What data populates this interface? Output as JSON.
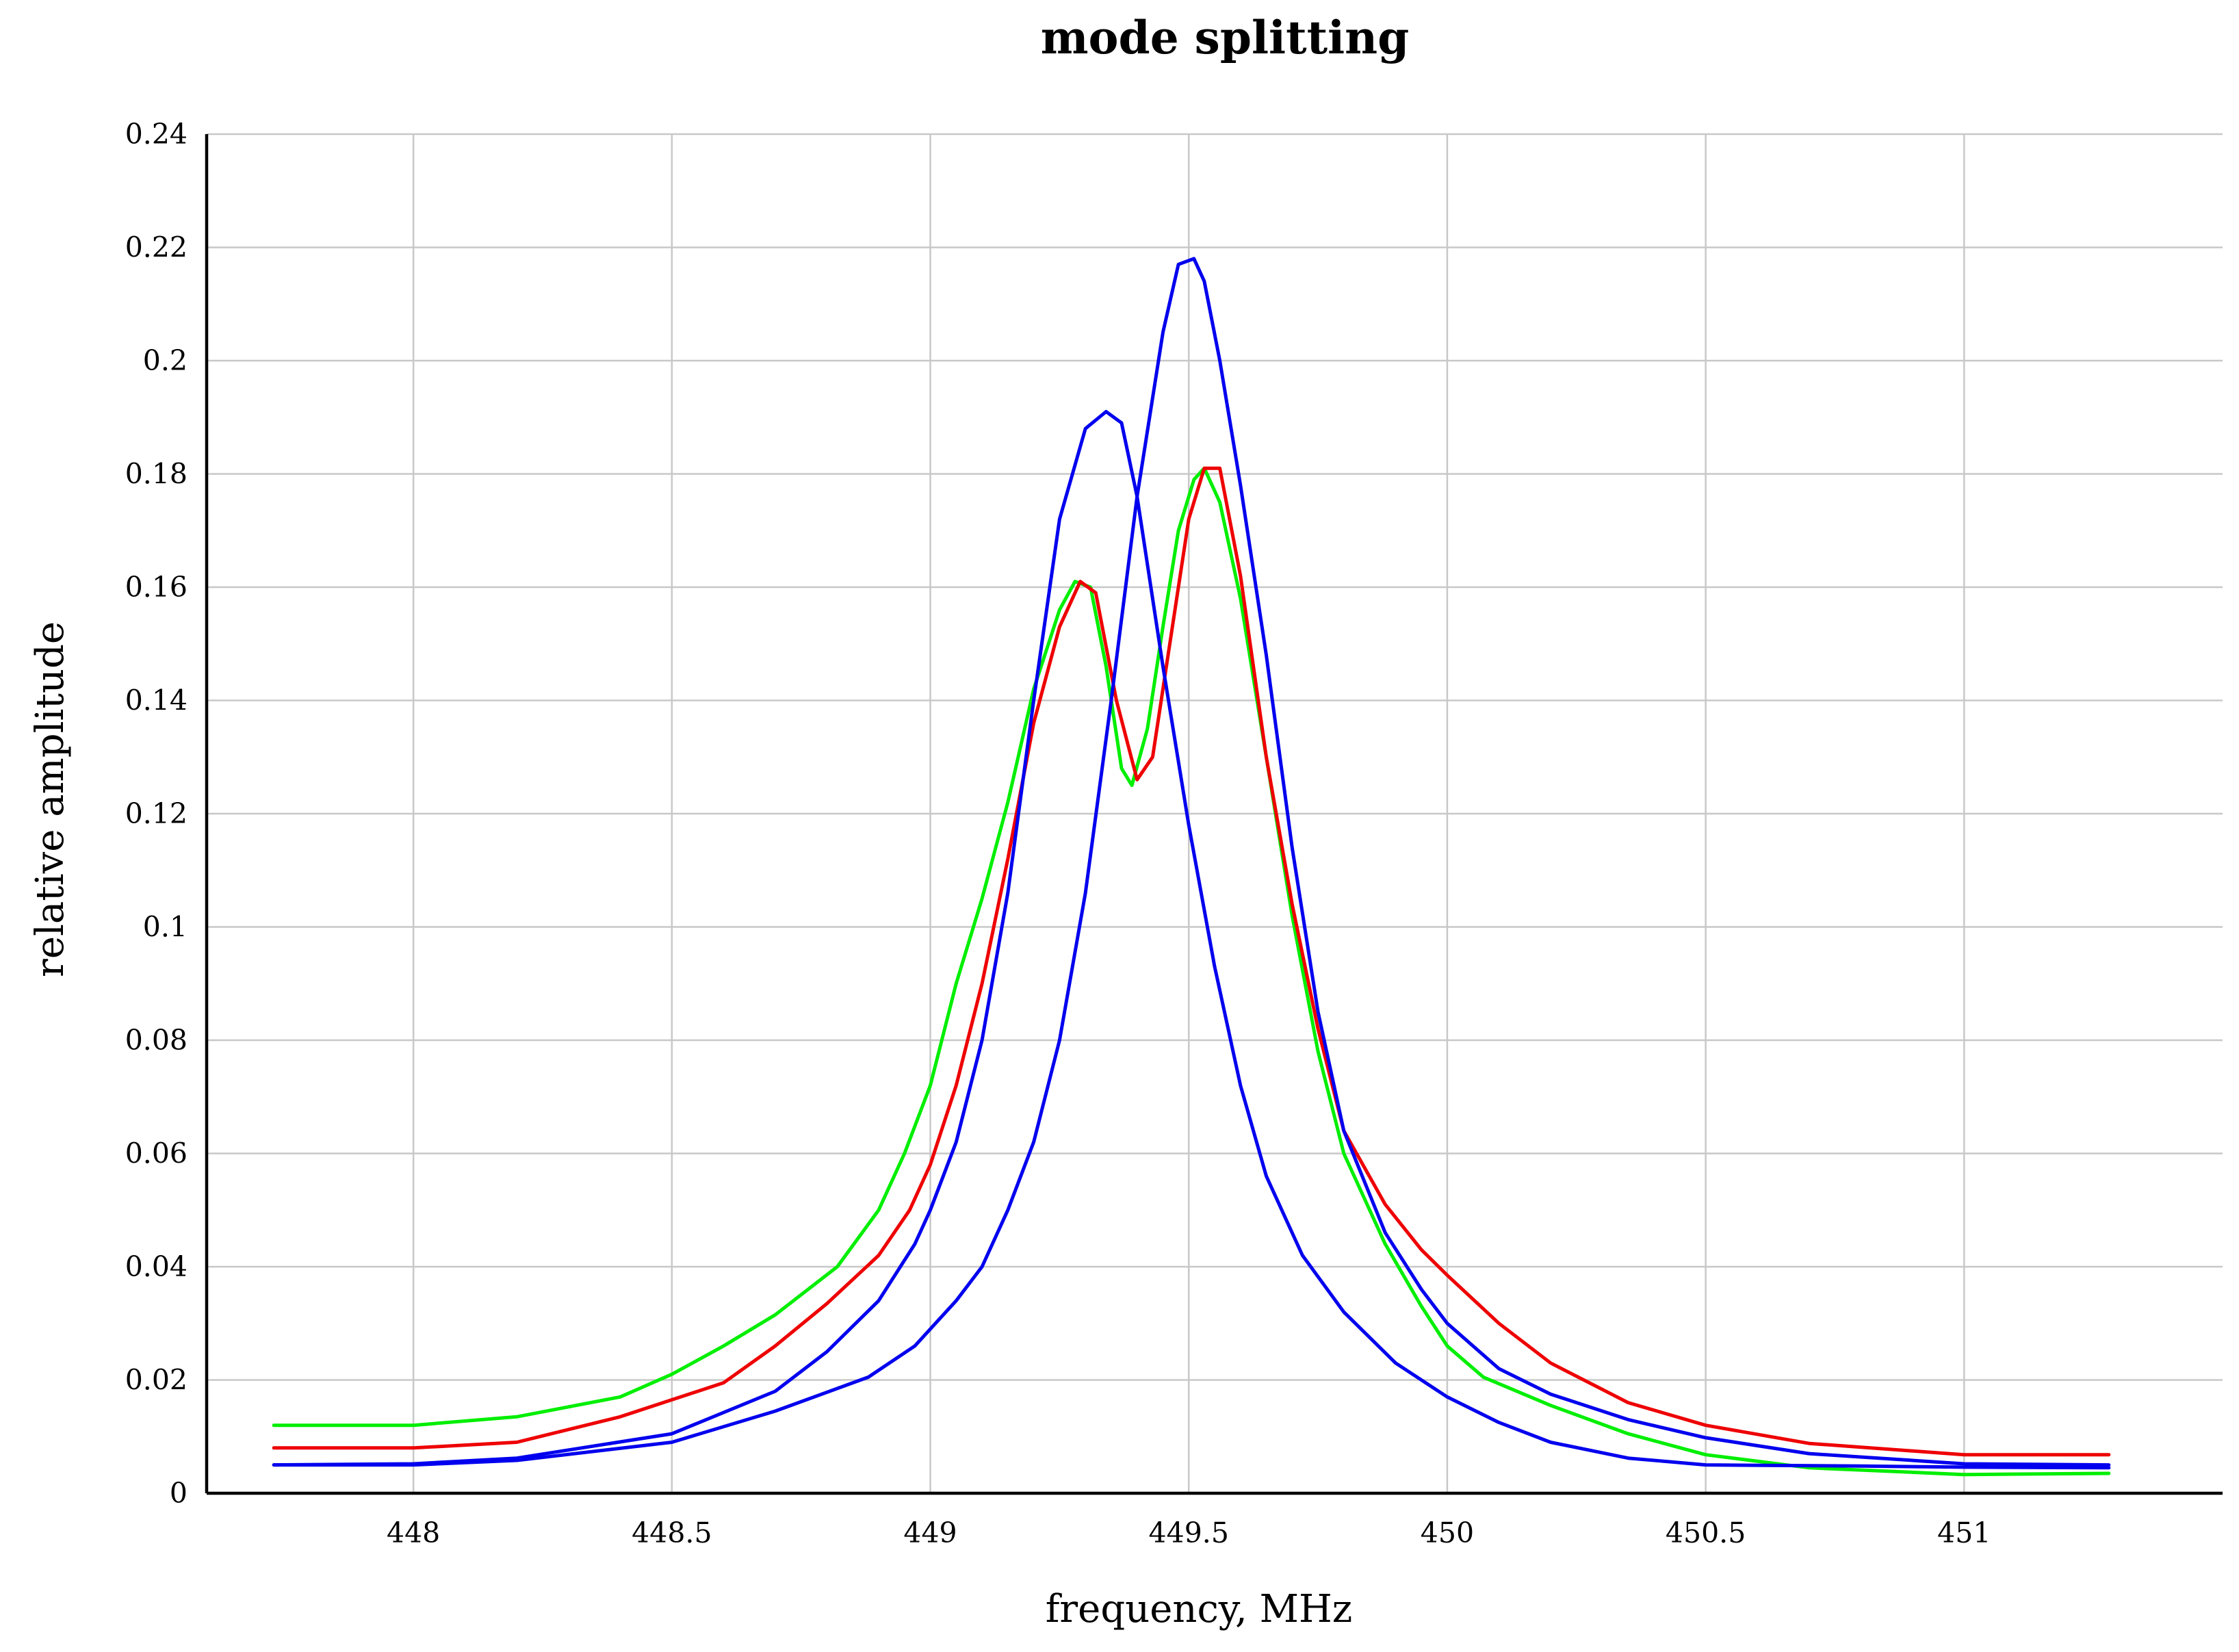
{
  "chart_data": {
    "type": "line",
    "title": "mode splitting",
    "xlabel": "frequency, MHz",
    "ylabel": "relative amplitude",
    "xlim": [
      447.6,
      451.5
    ],
    "ylim": [
      0,
      0.24
    ],
    "x_ticks": [
      448,
      448.5,
      449,
      449.5,
      450,
      450.5,
      451
    ],
    "x_tick_labels": [
      "448",
      "448.5",
      "449",
      "449.5",
      "450",
      "450.5",
      "451"
    ],
    "y_ticks": [
      0,
      0.02,
      0.04,
      0.06,
      0.08,
      0.1,
      0.12,
      0.14,
      0.16,
      0.18,
      0.2,
      0.22,
      0.24
    ],
    "y_tick_labels": [
      "0",
      "0.02",
      "0.04",
      "0.06",
      "0.08",
      "0.1",
      "0.12",
      "0.14",
      "0.16",
      "0.18",
      "0.2",
      "0.22",
      "0.24"
    ],
    "grid": true,
    "legend": "none",
    "series": [
      {
        "color": "#00ee00",
        "points": [
          [
            447.73,
            0.012
          ],
          [
            448.0,
            0.012
          ],
          [
            448.2,
            0.0135
          ],
          [
            448.4,
            0.017
          ],
          [
            448.5,
            0.021
          ],
          [
            448.6,
            0.026
          ],
          [
            448.7,
            0.0315
          ],
          [
            448.82,
            0.04
          ],
          [
            448.9,
            0.05
          ],
          [
            448.95,
            0.06
          ],
          [
            449.0,
            0.072
          ],
          [
            449.05,
            0.09
          ],
          [
            449.1,
            0.105
          ],
          [
            449.15,
            0.122
          ],
          [
            449.2,
            0.142
          ],
          [
            449.25,
            0.156
          ],
          [
            449.28,
            0.161
          ],
          [
            449.31,
            0.16
          ],
          [
            449.34,
            0.146
          ],
          [
            449.37,
            0.128
          ],
          [
            449.39,
            0.125
          ],
          [
            449.42,
            0.135
          ],
          [
            449.45,
            0.153
          ],
          [
            449.48,
            0.17
          ],
          [
            449.51,
            0.179
          ],
          [
            449.53,
            0.181
          ],
          [
            449.56,
            0.175
          ],
          [
            449.6,
            0.158
          ],
          [
            449.65,
            0.13
          ],
          [
            449.7,
            0.102
          ],
          [
            449.75,
            0.078
          ],
          [
            449.8,
            0.06
          ],
          [
            449.88,
            0.044
          ],
          [
            449.95,
            0.033
          ],
          [
            450.0,
            0.026
          ],
          [
            450.07,
            0.0205
          ],
          [
            450.2,
            0.0155
          ],
          [
            450.35,
            0.0105
          ],
          [
            450.5,
            0.0068
          ],
          [
            450.7,
            0.0045
          ],
          [
            451.0,
            0.0033
          ],
          [
            451.28,
            0.0035
          ]
        ]
      },
      {
        "color": "#ee0000",
        "points": [
          [
            447.73,
            0.008
          ],
          [
            448.0,
            0.008
          ],
          [
            448.2,
            0.009
          ],
          [
            448.4,
            0.0135
          ],
          [
            448.6,
            0.0195
          ],
          [
            448.7,
            0.026
          ],
          [
            448.8,
            0.0335
          ],
          [
            448.9,
            0.042
          ],
          [
            448.96,
            0.05
          ],
          [
            449.0,
            0.058
          ],
          [
            449.05,
            0.072
          ],
          [
            449.1,
            0.09
          ],
          [
            449.15,
            0.112
          ],
          [
            449.2,
            0.136
          ],
          [
            449.25,
            0.153
          ],
          [
            449.29,
            0.161
          ],
          [
            449.32,
            0.159
          ],
          [
            449.36,
            0.14
          ],
          [
            449.4,
            0.126
          ],
          [
            449.43,
            0.13
          ],
          [
            449.46,
            0.148
          ],
          [
            449.5,
            0.172
          ],
          [
            449.53,
            0.181
          ],
          [
            449.56,
            0.181
          ],
          [
            449.6,
            0.162
          ],
          [
            449.65,
            0.13
          ],
          [
            449.7,
            0.104
          ],
          [
            449.75,
            0.082
          ],
          [
            449.8,
            0.064
          ],
          [
            449.88,
            0.051
          ],
          [
            449.95,
            0.043
          ],
          [
            450.0,
            0.0385
          ],
          [
            450.1,
            0.03
          ],
          [
            450.2,
            0.023
          ],
          [
            450.35,
            0.016
          ],
          [
            450.5,
            0.012
          ],
          [
            450.7,
            0.0088
          ],
          [
            451.0,
            0.0068
          ],
          [
            451.28,
            0.0068
          ]
        ]
      },
      {
        "color": "#0000ee",
        "points": [
          [
            447.73,
            0.005
          ],
          [
            448.0,
            0.0052
          ],
          [
            448.2,
            0.0062
          ],
          [
            448.5,
            0.0105
          ],
          [
            448.7,
            0.018
          ],
          [
            448.8,
            0.025
          ],
          [
            448.9,
            0.034
          ],
          [
            448.97,
            0.044
          ],
          [
            449.0,
            0.05
          ],
          [
            449.05,
            0.062
          ],
          [
            449.1,
            0.08
          ],
          [
            449.15,
            0.106
          ],
          [
            449.2,
            0.14
          ],
          [
            449.25,
            0.172
          ],
          [
            449.3,
            0.188
          ],
          [
            449.34,
            0.191
          ],
          [
            449.37,
            0.189
          ],
          [
            449.4,
            0.176
          ],
          [
            449.45,
            0.146
          ],
          [
            449.5,
            0.118
          ],
          [
            449.55,
            0.093
          ],
          [
            449.6,
            0.072
          ],
          [
            449.65,
            0.056
          ],
          [
            449.72,
            0.042
          ],
          [
            449.8,
            0.032
          ],
          [
            449.9,
            0.023
          ],
          [
            450.0,
            0.017
          ],
          [
            450.1,
            0.0125
          ],
          [
            450.2,
            0.009
          ],
          [
            450.35,
            0.0062
          ],
          [
            450.5,
            0.005
          ],
          [
            450.8,
            0.0048
          ],
          [
            451.0,
            0.0046
          ],
          [
            451.28,
            0.0045
          ]
        ]
      },
      {
        "color": "#0000ee",
        "points": [
          [
            447.73,
            0.005
          ],
          [
            448.0,
            0.005
          ],
          [
            448.2,
            0.0058
          ],
          [
            448.5,
            0.009
          ],
          [
            448.7,
            0.0145
          ],
          [
            448.88,
            0.0205
          ],
          [
            448.97,
            0.026
          ],
          [
            449.05,
            0.034
          ],
          [
            449.1,
            0.04
          ],
          [
            449.15,
            0.05
          ],
          [
            449.2,
            0.062
          ],
          [
            449.25,
            0.08
          ],
          [
            449.3,
            0.106
          ],
          [
            449.35,
            0.14
          ],
          [
            449.4,
            0.176
          ],
          [
            449.45,
            0.205
          ],
          [
            449.48,
            0.217
          ],
          [
            449.51,
            0.218
          ],
          [
            449.53,
            0.214
          ],
          [
            449.56,
            0.2
          ],
          [
            449.6,
            0.178
          ],
          [
            449.65,
            0.148
          ],
          [
            449.7,
            0.114
          ],
          [
            449.75,
            0.085
          ],
          [
            449.8,
            0.064
          ],
          [
            449.88,
            0.046
          ],
          [
            449.95,
            0.036
          ],
          [
            450.0,
            0.03
          ],
          [
            450.1,
            0.022
          ],
          [
            450.2,
            0.0175
          ],
          [
            450.35,
            0.013
          ],
          [
            450.5,
            0.0098
          ],
          [
            450.7,
            0.007
          ],
          [
            451.0,
            0.0052
          ],
          [
            451.28,
            0.005
          ]
        ]
      }
    ]
  }
}
